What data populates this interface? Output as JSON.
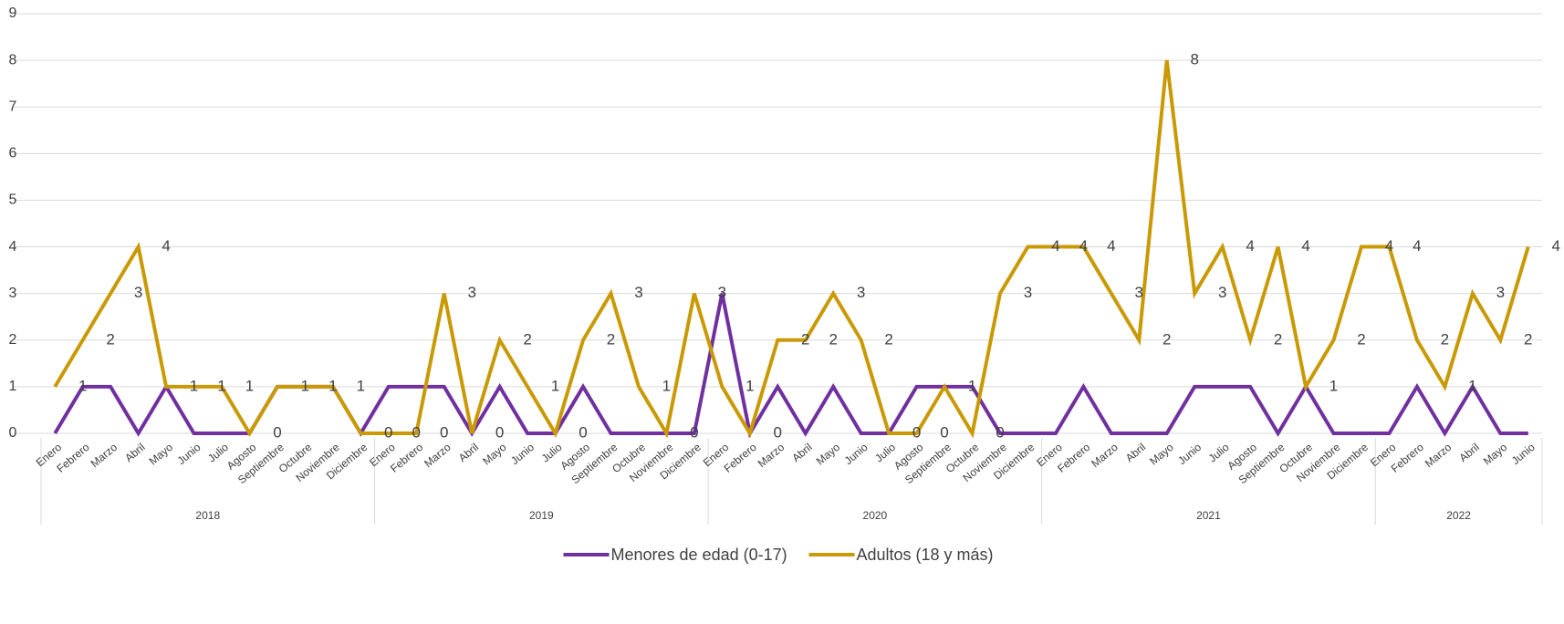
{
  "chart_data": {
    "type": "line",
    "groups": [
      {
        "label": "2018",
        "categories": [
          "Enero",
          "Febrero",
          "Marzo",
          "Abril",
          "Mayo",
          "Junio",
          "Julio",
          "Agosto",
          "Septiembre",
          "Octubre",
          "Noviembre",
          "Diciembre"
        ]
      },
      {
        "label": "2019",
        "categories": [
          "Enero",
          "Febrero",
          "Marzo",
          "Abril",
          "Mayo",
          "Junio",
          "Julio",
          "Agosto",
          "Septiembre",
          "Octubre",
          "Noviembre",
          "Diciembre"
        ]
      },
      {
        "label": "2020",
        "categories": [
          "Enero",
          "Febrero",
          "Marzo",
          "Abril",
          "Mayo",
          "Junio",
          "Julio",
          "Agosto",
          "Septiembre",
          "Octubre",
          "Noviembre",
          "Diciembre"
        ]
      },
      {
        "label": "2021",
        "categories": [
          "Enero",
          "Febrero",
          "Marzo",
          "Abril",
          "Mayo",
          "Junio",
          "Julio",
          "Agosto",
          "Septiembre",
          "Octubre",
          "Noviembre",
          "Diciembre"
        ]
      },
      {
        "label": "2022",
        "categories": [
          "Enero",
          "Febrero",
          "Marzo",
          "Abril",
          "Mayo",
          "Junio"
        ]
      }
    ],
    "series": [
      {
        "name": "Menores de edad (0-17)",
        "color": "#7030a0",
        "values": [
          0,
          1,
          1,
          0,
          1,
          0,
          0,
          0,
          1,
          1,
          1,
          0,
          1,
          1,
          1,
          0,
          1,
          0,
          0,
          1,
          0,
          0,
          0,
          0,
          3,
          0,
          1,
          0,
          1,
          0,
          0,
          1,
          1,
          1,
          0,
          0,
          0,
          1,
          0,
          0,
          0,
          1,
          1,
          1,
          0,
          1,
          0,
          0,
          0,
          1,
          0,
          1,
          0,
          0
        ]
      },
      {
        "name": "Adultos (18 y más)",
        "color": "#c99a06",
        "values": [
          1,
          2,
          3,
          4,
          1,
          1,
          1,
          0,
          1,
          1,
          1,
          0,
          0,
          0,
          3,
          0,
          2,
          1,
          0,
          2,
          3,
          1,
          0,
          3,
          1,
          0,
          2,
          2,
          3,
          2,
          0,
          0,
          1,
          0,
          3,
          4,
          4,
          4,
          3,
          2,
          8,
          3,
          4,
          2,
          4,
          1,
          2,
          4,
          4,
          2,
          1,
          3,
          2,
          4
        ]
      }
    ],
    "labeled_series": 1,
    "ylim": [
      0,
      9
    ],
    "yticks": [
      0,
      1,
      2,
      3,
      4,
      5,
      6,
      7,
      8,
      9
    ],
    "grid": true,
    "legend": "bottom"
  }
}
